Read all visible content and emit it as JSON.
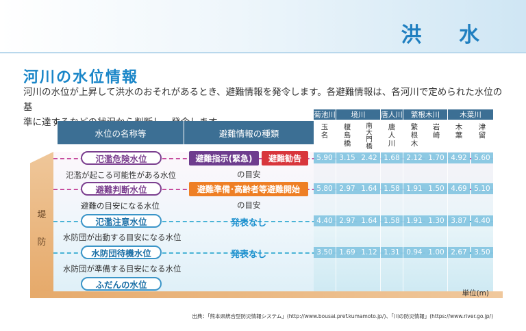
{
  "header": {
    "title": "洪 水"
  },
  "section": {
    "title": "河川の水位情報",
    "intro_line1": "河川の水位が上昇して洪水のおそれがあるとき、避難情報を発令します。各避難情報は、各河川で定められた水位の基",
    "intro_line2": "準に達するなどの状況から判断し、発令します。"
  },
  "table": {
    "col_name": "水位の名称等",
    "col_kind": "避難情報の種類",
    "rivers": [
      "菊池川",
      "境川",
      "唐人川",
      "繁根木川",
      "木葉川"
    ],
    "stations": [
      [
        "玉",
        "名"
      ],
      [
        "榎",
        "島",
        "橋"
      ],
      [
        "南",
        "大",
        "門",
        "橋"
      ],
      [
        "唐",
        "人",
        "川"
      ],
      [
        "繁",
        "根",
        "木"
      ],
      [
        "岩",
        "崎"
      ],
      [
        "木",
        "葉"
      ],
      [
        "津",
        "留"
      ]
    ],
    "levels": [
      {
        "name": "氾濫危険水位",
        "desc": "氾濫が起こる可能性がある水位",
        "badges": [
          "避難指示(緊急)",
          "避難勧告"
        ],
        "note": "の目安",
        "values": [
          "5.90",
          "3.15",
          "2.42",
          "1.68",
          "2.12",
          "1.70",
          "4.92",
          "5.60"
        ]
      },
      {
        "name": "避難判断水位",
        "desc": "避難の目安になる水位",
        "badges": [
          "避難準備･高齢者等避難開始"
        ],
        "note": "の目安",
        "values": [
          "5.80",
          "2.97",
          "1.64",
          "1.58",
          "1.91",
          "1.50",
          "4.69",
          "5.10"
        ]
      },
      {
        "name": "氾濫注意水位",
        "desc": "水防団が出動する目安になる水位",
        "status": "発表なし",
        "values": [
          "4.40",
          "2.97",
          "1.64",
          "1.58",
          "1.91",
          "1.30",
          "3.87",
          "4.40"
        ]
      },
      {
        "name": "水防団待機水位",
        "desc": "水防団が準備する目安になる水位",
        "status": "発表なし",
        "values": [
          "3.50",
          "1.69",
          "1.12",
          "1.31",
          "0.94",
          "1.00",
          "2.67",
          "3.50"
        ]
      },
      {
        "name": "ふだんの水位"
      }
    ],
    "bank_label": [
      "堤",
      "防"
    ],
    "unit": "単位(m)"
  },
  "source": "出典：「熊本県統合型防災情報システム」(http://www.bousai.pref.kumamoto.jp/)、「川の防災情報」(https://www.river.go.jp/)",
  "colors": {
    "accent": "#1a86c8",
    "header_bg": "#3c6f94",
    "purple": "#6e3d8e",
    "red": "#d8363c",
    "orange": "#ee7f25"
  }
}
